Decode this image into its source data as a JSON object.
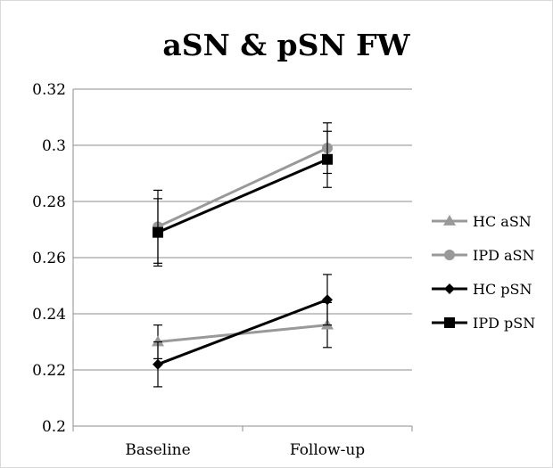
{
  "chart_data": {
    "type": "line",
    "title": "aSN & pSN FW",
    "xlabel": "",
    "ylabel": "",
    "categories": [
      "Baseline",
      "Follow-up"
    ],
    "ylim": [
      0.2,
      0.32
    ],
    "yticks": [
      "0.2",
      "0.22",
      "0.24",
      "0.26",
      "0.28",
      "0.3",
      "0.32"
    ],
    "grid": true,
    "legend_position": "right",
    "series": [
      {
        "name": "HC aSN",
        "values": [
          0.23,
          0.236
        ],
        "err_low": [
          0.224,
          0.228
        ],
        "err_high": [
          0.236,
          0.244
        ],
        "color": "#999999",
        "marker": "triangle"
      },
      {
        "name": "IPD aSN",
        "values": [
          0.271,
          0.299
        ],
        "err_low": [
          0.258,
          0.29
        ],
        "err_high": [
          0.284,
          0.308
        ],
        "color": "#999999",
        "marker": "circle"
      },
      {
        "name": "HC pSN",
        "values": [
          0.222,
          0.245
        ],
        "err_low": [
          0.214,
          0.236
        ],
        "err_high": [
          0.23,
          0.254
        ],
        "color": "#000000",
        "marker": "diamond"
      },
      {
        "name": "IPD pSN",
        "values": [
          0.269,
          0.295
        ],
        "err_low": [
          0.257,
          0.285
        ],
        "err_high": [
          0.281,
          0.305
        ],
        "color": "#000000",
        "marker": "square"
      }
    ]
  }
}
